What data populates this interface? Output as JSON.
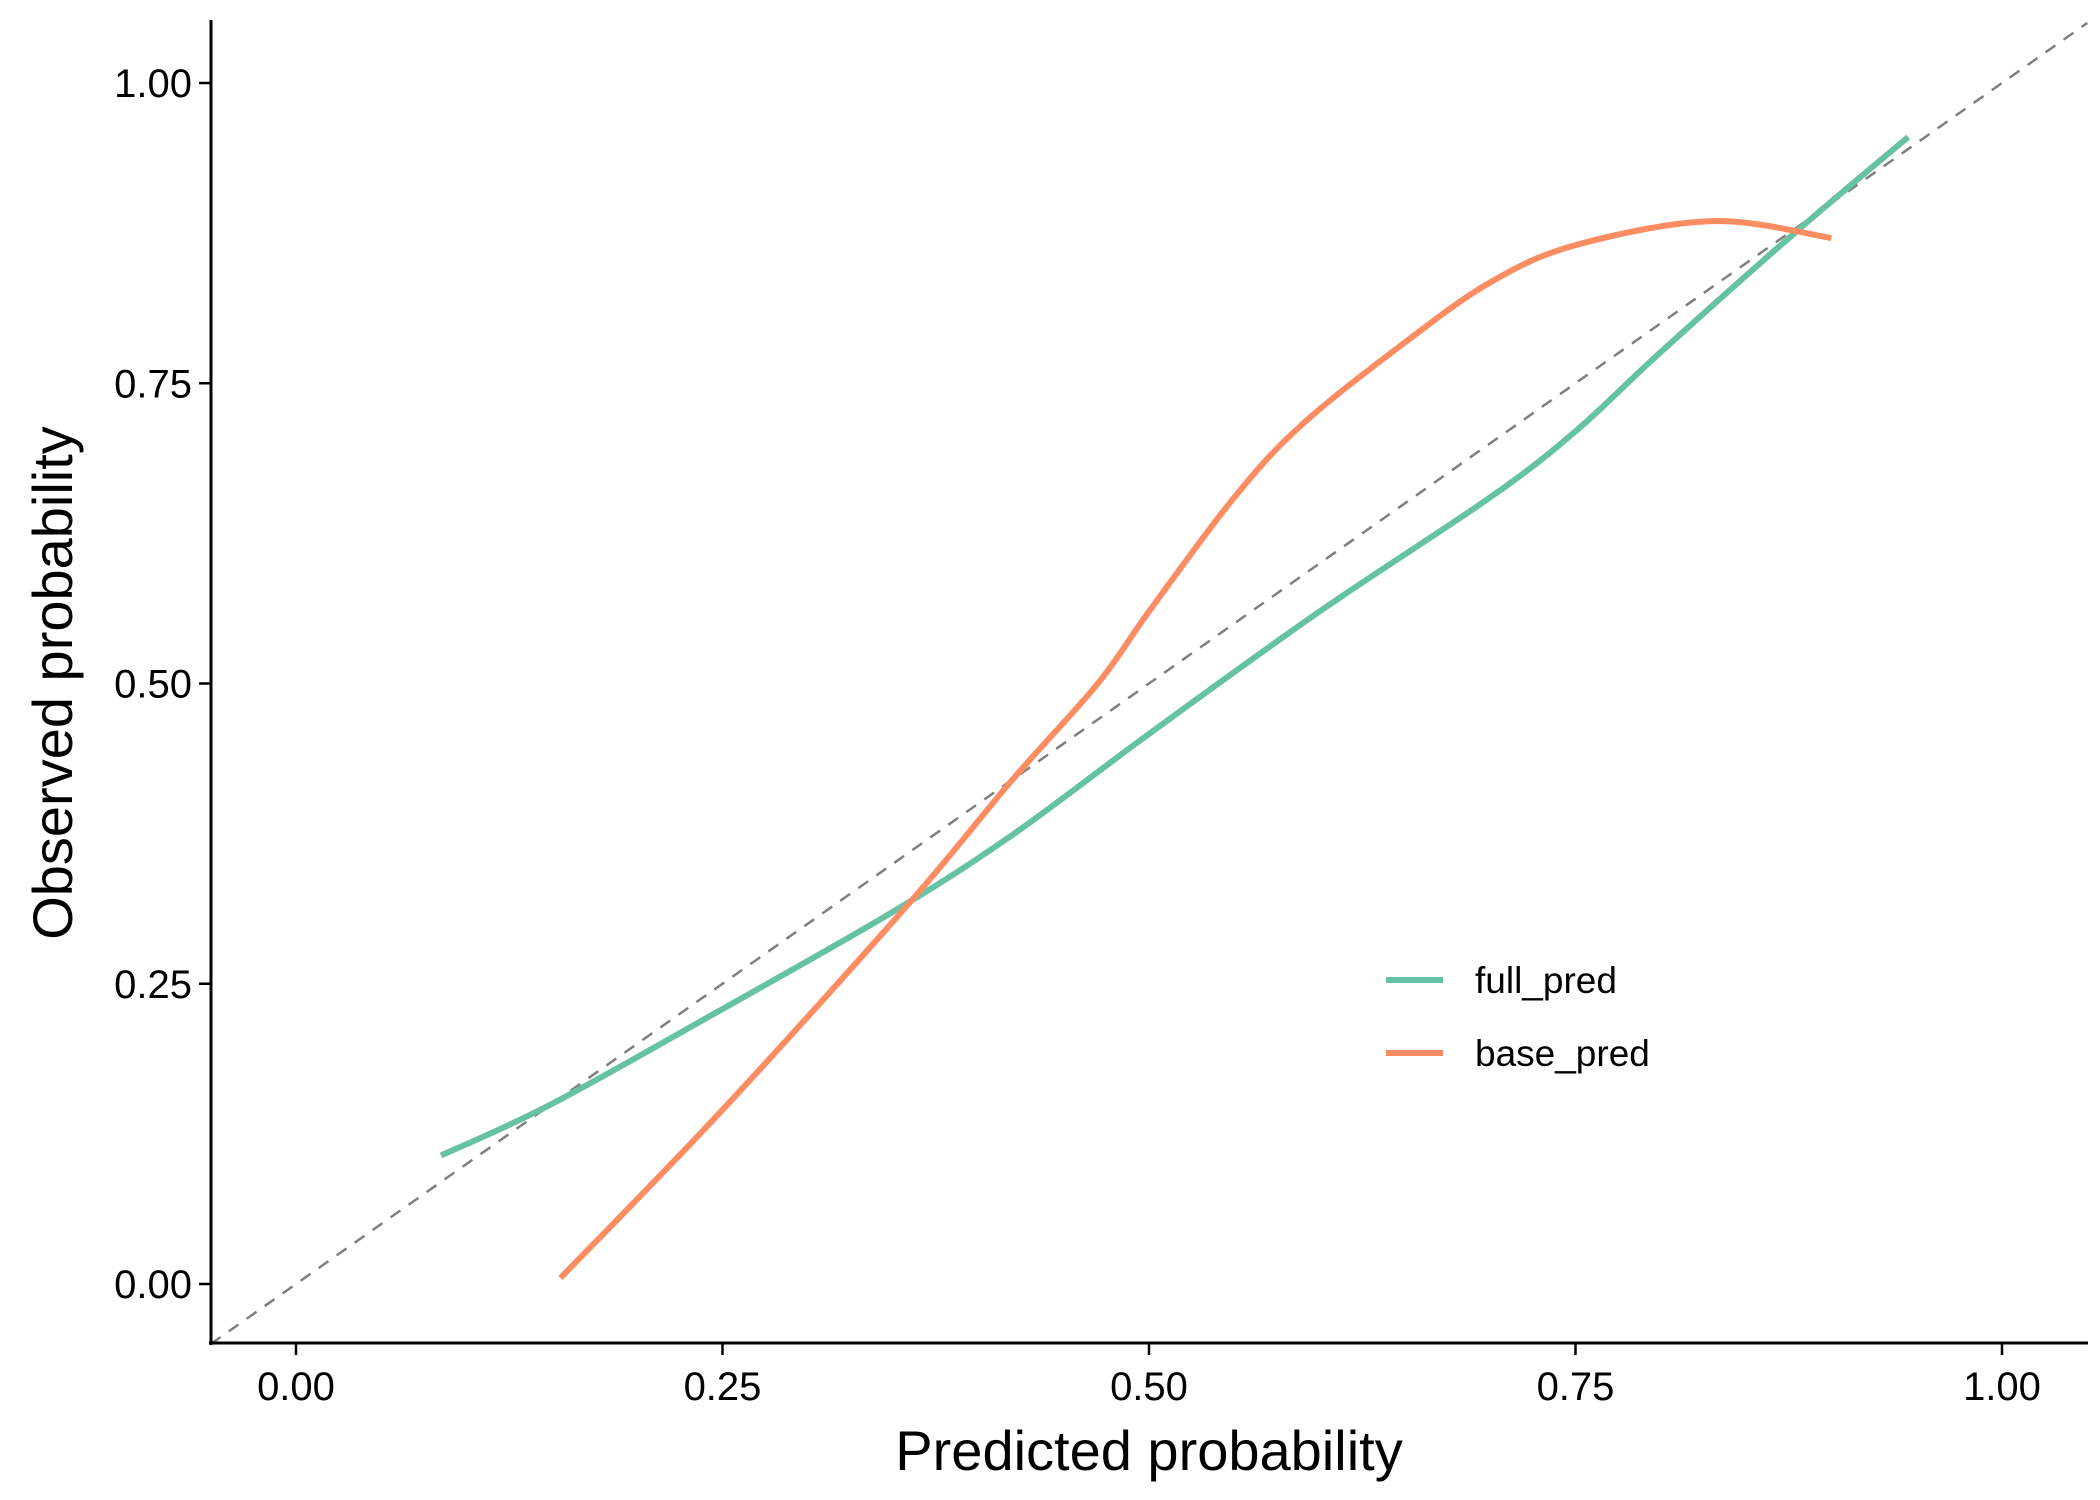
{
  "chart_data": {
    "type": "line",
    "title": "",
    "xlabel": "Predicted probability",
    "ylabel": "Observed probability",
    "xlim": [
      -0.05,
      1.05
    ],
    "ylim": [
      -0.05,
      1.05
    ],
    "xticks": [
      "0.00",
      "0.25",
      "0.50",
      "0.75",
      "1.00"
    ],
    "yticks": [
      "0.00",
      "0.25",
      "0.50",
      "0.75",
      "1.00"
    ],
    "grid": false,
    "legend_position": "bottom-right (inside)",
    "reference_line": {
      "style": "dashed",
      "color": "#7f7f7f",
      "slope": 1,
      "intercept": 0
    },
    "series": [
      {
        "name": "full_pred",
        "color": "#66c2a5",
        "x": [
          0.085,
          0.15,
          0.25,
          0.35,
          0.42,
          0.5,
          0.6,
          0.7,
          0.75,
          0.8,
          0.88,
          0.945
        ],
        "y": [
          0.107,
          0.15,
          0.229,
          0.31,
          0.374,
          0.458,
          0.56,
          0.655,
          0.71,
          0.776,
          0.877,
          0.955
        ]
      },
      {
        "name": "base_pred",
        "color": "#fc8d62",
        "x": [
          0.155,
          0.25,
          0.36,
          0.42,
          0.47,
          0.5,
          0.55,
          0.59,
          0.65,
          0.7,
          0.75,
          0.83,
          0.9
        ],
        "y": [
          0.005,
          0.145,
          0.318,
          0.42,
          0.5,
          0.56,
          0.655,
          0.716,
          0.784,
          0.834,
          0.865,
          0.885,
          0.871
        ]
      }
    ]
  }
}
